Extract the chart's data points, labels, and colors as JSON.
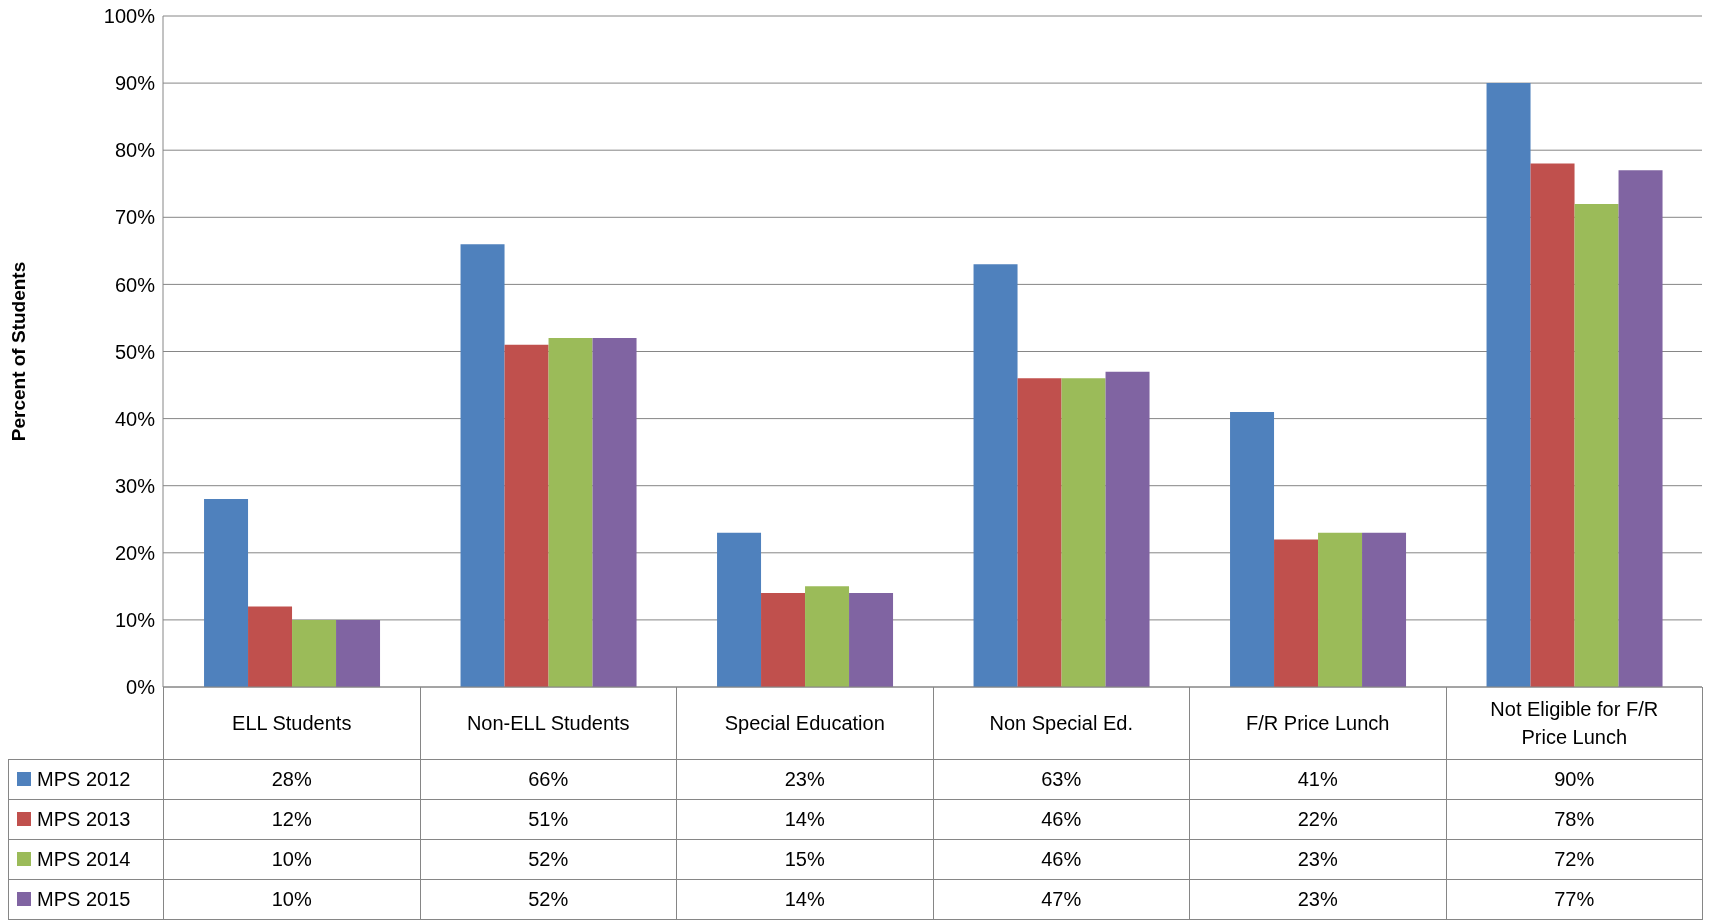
{
  "chart_data": {
    "type": "bar",
    "ylabel": "Percent of Students",
    "categories": [
      "ELL Students",
      "Non-ELL Students",
      "Special Education",
      "Non Special Ed.",
      "F/R Price Lunch",
      "Not Eligible for F/R Price Lunch"
    ],
    "series": [
      {
        "name": "MPS 2012",
        "color": "#4f81bd",
        "values": [
          28,
          66,
          23,
          63,
          41,
          90
        ],
        "value_labels": [
          "28%",
          "66%",
          "23%",
          "63%",
          "41%",
          "90%"
        ]
      },
      {
        "name": "MPS 2013",
        "color": "#c0504d",
        "values": [
          12,
          51,
          14,
          46,
          22,
          78
        ],
        "value_labels": [
          "12%",
          "51%",
          "14%",
          "46%",
          "22%",
          "78%"
        ]
      },
      {
        "name": "MPS 2014",
        "color": "#9bbb59",
        "values": [
          10,
          52,
          15,
          46,
          23,
          72
        ],
        "value_labels": [
          "10%",
          "52%",
          "15%",
          "46%",
          "23%",
          "72%"
        ]
      },
      {
        "name": "MPS 2015",
        "color": "#8064a2",
        "values": [
          10,
          52,
          14,
          47,
          23,
          77
        ],
        "value_labels": [
          "10%",
          "52%",
          "14%",
          "47%",
          "23%",
          "77%"
        ]
      }
    ],
    "ylim": [
      0,
      100
    ],
    "yticks": [
      {
        "value": 0,
        "label": "0%"
      },
      {
        "value": 10,
        "label": "10%"
      },
      {
        "value": 20,
        "label": "20%"
      },
      {
        "value": 30,
        "label": "30%"
      },
      {
        "value": 40,
        "label": "40%"
      },
      {
        "value": 50,
        "label": "50%"
      },
      {
        "value": 60,
        "label": "60%"
      },
      {
        "value": 70,
        "label": "70%"
      },
      {
        "value": 80,
        "label": "80%"
      },
      {
        "value": 90,
        "label": "90%"
      },
      {
        "value": 100,
        "label": "100%"
      }
    ],
    "grid": "y",
    "legend": "bottom"
  }
}
